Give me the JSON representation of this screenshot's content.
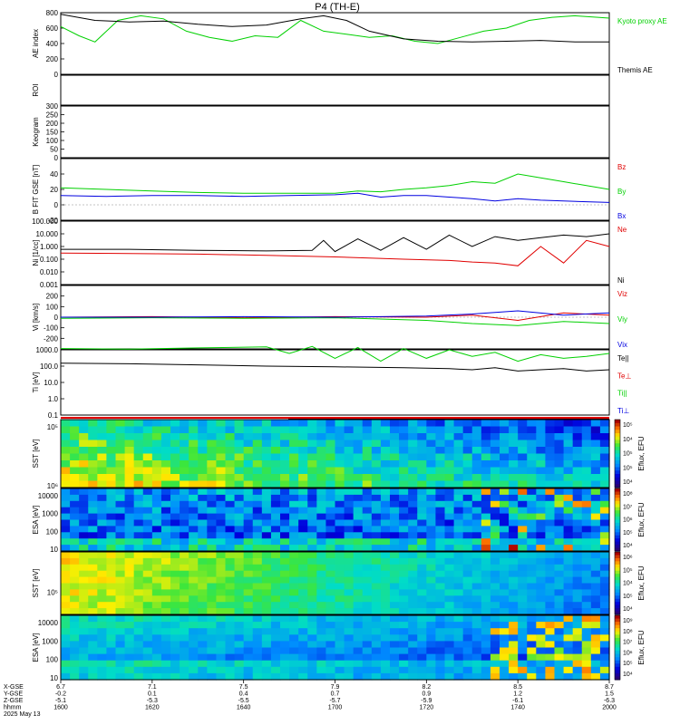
{
  "figure": {
    "title": "P4 (TH-E)",
    "footer": {
      "labels": [
        "X-GSE",
        "Y-GSE",
        "Z-GSE",
        "hhmm",
        "2025 May 13"
      ],
      "ticks": [
        {
          "x": "6.7",
          "y": "-0.2",
          "z": "-5.1",
          "t": "1600"
        },
        {
          "x": "7.1",
          "y": "0.1",
          "z": "-5.3",
          "t": "1620"
        },
        {
          "x": "7.5",
          "y": "0.4",
          "z": "-5.5",
          "t": "1640"
        },
        {
          "x": "7.9",
          "y": "0.7",
          "z": "-5.7",
          "t": "1700"
        },
        {
          "x": "8.2",
          "y": "0.9",
          "z": "-5.9",
          "t": "1720"
        },
        {
          "x": "8.5",
          "y": "1.2",
          "z": "-6.1",
          "t": "1740"
        },
        {
          "x": "8.7",
          "y": "1.5",
          "z": "-6.3",
          "t": "2000"
        }
      ]
    }
  },
  "colors": {
    "black": "#000000",
    "red": "#e00000",
    "green": "#00d000",
    "blue": "#0000e0"
  },
  "chart_data": [
    {
      "id": "ae",
      "type": "line",
      "ylabel": "AE index",
      "ylim": [
        0,
        800
      ],
      "yticks": [
        "0",
        "200",
        "400",
        "600",
        "800"
      ],
      "xlim": [
        0,
        240
      ],
      "series": [
        {
          "name": "Kyoto proxy AE",
          "color": "#00d000",
          "x": [
            0,
            8,
            15,
            25,
            35,
            45,
            55,
            65,
            75,
            85,
            95,
            105,
            115,
            125,
            135,
            145,
            155,
            165,
            175,
            185,
            195,
            205,
            215,
            225,
            235,
            240
          ],
          "y": [
            620,
            500,
            420,
            700,
            760,
            720,
            560,
            480,
            430,
            500,
            480,
            700,
            560,
            520,
            480,
            500,
            430,
            400,
            480,
            560,
            600,
            700,
            740,
            760,
            740,
            730
          ]
        },
        {
          "name": "Themis AE",
          "color": "#000000",
          "x": [
            0,
            15,
            30,
            45,
            60,
            75,
            90,
            105,
            115,
            125,
            135,
            150,
            165,
            180,
            195,
            210,
            225,
            240
          ],
          "y": [
            780,
            700,
            680,
            690,
            650,
            620,
            640,
            720,
            760,
            700,
            560,
            460,
            430,
            420,
            430,
            440,
            420,
            420
          ]
        }
      ]
    },
    {
      "id": "roi",
      "type": "line",
      "ylabel": "ROI",
      "ylim": [
        0,
        1
      ],
      "yticks": [],
      "series": []
    },
    {
      "id": "keogram",
      "type": "line",
      "ylabel": "Keogram",
      "ylim": [
        0,
        300
      ],
      "yticks": [
        "0",
        "50",
        "100",
        "150",
        "200",
        "250",
        "300"
      ],
      "series": []
    },
    {
      "id": "bfield",
      "type": "line",
      "ylabel": "B FIT GSE [nT]",
      "ylim": [
        -20,
        60
      ],
      "yticks": [
        "-20",
        "0",
        "20",
        "40"
      ],
      "series": [
        {
          "name": "Bz",
          "color": "#e00000",
          "x": [],
          "y": []
        },
        {
          "name": "By",
          "color": "#00d000",
          "x": [
            0,
            20,
            40,
            60,
            80,
            100,
            120,
            130,
            140,
            150,
            160,
            170,
            180,
            190,
            200,
            210,
            220,
            230,
            240
          ],
          "y": [
            22,
            20,
            18,
            16,
            15,
            15,
            15,
            18,
            17,
            20,
            22,
            25,
            30,
            28,
            40,
            35,
            30,
            25,
            20
          ]
        },
        {
          "name": "Bx",
          "color": "#0000e0",
          "x": [
            0,
            20,
            40,
            60,
            80,
            100,
            120,
            130,
            140,
            150,
            160,
            170,
            180,
            190,
            200,
            210,
            220,
            230,
            240
          ],
          "y": [
            12,
            11,
            12,
            12,
            11,
            12,
            13,
            15,
            10,
            12,
            12,
            10,
            8,
            5,
            8,
            6,
            5,
            4,
            3
          ]
        }
      ]
    },
    {
      "id": "density",
      "type": "line",
      "ylabel": "Ni [1/cc]",
      "ylim_log": [
        0.001,
        100
      ],
      "yticks": [
        "0.001",
        "0.010",
        "0.100",
        "1.000",
        "10.000",
        "100.000"
      ],
      "series": [
        {
          "name": "Ne",
          "color": "#e00000",
          "x": [
            0,
            30,
            60,
            90,
            120,
            150,
            170,
            180,
            190,
            200,
            210,
            220,
            230,
            240
          ],
          "y": [
            0.3,
            0.28,
            0.25,
            0.2,
            0.15,
            0.1,
            0.08,
            0.06,
            0.05,
            0.03,
            1,
            0.05,
            3,
            1
          ]
        },
        {
          "name": "Ni",
          "color": "#000000",
          "x": [
            0,
            30,
            60,
            90,
            110,
            115,
            120,
            130,
            140,
            150,
            160,
            170,
            180,
            190,
            200,
            210,
            220,
            230,
            240
          ],
          "y": [
            0.6,
            0.6,
            0.5,
            0.45,
            0.5,
            3,
            0.4,
            4,
            0.5,
            5,
            0.6,
            8,
            1,
            6,
            3,
            5,
            8,
            6,
            10
          ]
        }
      ]
    },
    {
      "id": "velocity",
      "type": "line",
      "ylabel": "Vi [km/s]",
      "ylim": [
        -300,
        300
      ],
      "yticks": [
        "-200",
        "-100",
        "0",
        "100",
        "200"
      ],
      "series": [
        {
          "name": "Viz",
          "color": "#e00000",
          "x": [
            0,
            40,
            80,
            120,
            160,
            180,
            200,
            220,
            240
          ],
          "y": [
            0,
            5,
            -5,
            5,
            0,
            20,
            -30,
            40,
            20
          ]
        },
        {
          "name": "Viy",
          "color": "#00d000",
          "x": [
            0,
            40,
            80,
            120,
            160,
            180,
            200,
            220,
            240
          ],
          "y": [
            -10,
            -5,
            -10,
            -5,
            -30,
            -60,
            -80,
            -40,
            -60
          ]
        },
        {
          "name": "Vix",
          "color": "#0000e0",
          "x": [
            0,
            40,
            80,
            120,
            160,
            180,
            200,
            220,
            240
          ],
          "y": [
            0,
            0,
            5,
            0,
            10,
            30,
            60,
            20,
            40
          ]
        }
      ]
    },
    {
      "id": "temperature",
      "type": "line",
      "ylabel": "Ti [eV]",
      "ylim_log": [
        0.1,
        1000
      ],
      "yticks": [
        "0.1",
        "1.0",
        "10.0",
        "100.0",
        "1000.0"
      ],
      "series": [
        {
          "name": "Te||",
          "color": "#000000",
          "x": [
            0,
            30,
            60,
            90,
            120,
            150,
            170,
            180,
            190,
            200,
            210,
            220,
            230,
            240
          ],
          "y": [
            150,
            140,
            120,
            100,
            90,
            80,
            70,
            60,
            80,
            50,
            60,
            70,
            50,
            60
          ]
        },
        {
          "name": "Te⊥",
          "color": "#e00000",
          "x": [],
          "y": []
        },
        {
          "name": "Ti||",
          "color": "#00d000",
          "x": [
            0,
            30,
            60,
            90,
            100,
            110,
            120,
            130,
            140,
            150,
            160,
            170,
            180,
            190,
            200,
            210,
            220,
            230,
            240
          ],
          "y": [
            1200,
            1100,
            1300,
            1500,
            600,
            1600,
            300,
            1400,
            200,
            1200,
            300,
            1000,
            400,
            700,
            200,
            500,
            300,
            400,
            600
          ]
        },
        {
          "name": "Ti⊥",
          "color": "#0000e0",
          "x": [],
          "y": []
        }
      ]
    },
    {
      "id": "sst_ion",
      "type": "heatmap",
      "ylabel": "SST [eV]",
      "ytick_labels": [
        "10⁶",
        "10⁵"
      ],
      "colorbar": {
        "label": "Eflux, EFU",
        "ticks": [
          "10⁵",
          "10⁴",
          "10⁵",
          "10⁵",
          "10⁴"
        ]
      }
    },
    {
      "id": "esa_ion",
      "type": "heatmap",
      "ylabel": "ESA [eV]",
      "ytick_labels": [
        "10",
        "100",
        "1000",
        "10000"
      ],
      "colorbar": {
        "label": "Eflux, EFU",
        "ticks": [
          "10⁸",
          "10⁷",
          "10⁶",
          "10⁵",
          "10⁴"
        ]
      }
    },
    {
      "id": "sst_elec",
      "type": "heatmap",
      "ylabel": "SST [eV]",
      "ytick_labels": [
        "10⁵"
      ],
      "colorbar": {
        "label": "Eflux, EFU",
        "ticks": [
          "10⁶",
          "10⁵",
          "10⁴",
          "10⁵",
          "10⁴"
        ]
      }
    },
    {
      "id": "esa_elec",
      "type": "heatmap",
      "ylabel": "ESA [eV]",
      "ytick_labels": [
        "10",
        "100",
        "1000",
        "10000"
      ],
      "colorbar": {
        "label": "Eflux, EFU",
        "ticks": [
          "10⁹",
          "10⁸",
          "10⁷",
          "10⁶",
          "10⁵",
          "10⁴"
        ]
      }
    }
  ]
}
